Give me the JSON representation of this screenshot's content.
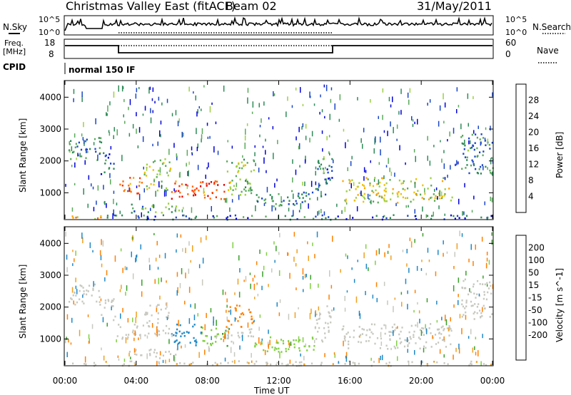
{
  "header": {
    "title": "Christmas Valley East (fitACF)",
    "beam": "Beam 02",
    "date": "31/May/2011"
  },
  "top_panels": {
    "nsky_label": "N.Sky",
    "nsearch_label": "N.Search",
    "nsky_ticks": [
      "10^5",
      "10^0"
    ],
    "nsearch_ticks": [
      "10^5",
      "10^0"
    ],
    "freq_label": "Freq.",
    "freq_unit": "[MHz]",
    "freq_ticks": [
      "18",
      "8"
    ],
    "nave_label": "Nave",
    "nave_ticks": [
      "60",
      "0"
    ],
    "cpid_label": "CPID",
    "cpid_value": "normal 150 IF"
  },
  "axes": {
    "xlabel": "Time UT",
    "x_ticks": [
      "00:00",
      "04:00",
      "08:00",
      "12:00",
      "16:00",
      "20:00",
      "00:00"
    ],
    "ylabel": "Slant Range [km]",
    "y_ticks": [
      "1000",
      "2000",
      "3000",
      "4000"
    ]
  },
  "colors": {
    "power_scale": [
      "#0000dd",
      "#1a46c8",
      "#2e8b57",
      "#5aaa5a",
      "#9cd040",
      "#f0c000",
      "#ffa500",
      "#ff6a00",
      "#ff3000",
      "#e00000"
    ],
    "velocity_scale": [
      "#1038b0",
      "#1e88c8",
      "#3aa02a",
      "#80d040",
      "#c8c8c0",
      "#c8c8c0",
      "#f0a020",
      "#ff8000",
      "#f04000",
      "#e00000"
    ]
  },
  "chart_data": [
    {
      "type": "heatmap",
      "title": "",
      "xlabel": "",
      "ylabel": "Slant Range [km]",
      "xlim": [
        0,
        24
      ],
      "ylim": [
        180,
        4500
      ],
      "colorbar_label": "Power [dB]",
      "colorbar_ticks": [
        "4",
        "8",
        "12",
        "16",
        "20",
        "24",
        "28"
      ],
      "regions": [
        {
          "t0": 0.2,
          "t1": 2.0,
          "r0": 2050,
          "r1": 2750,
          "value": 9
        },
        {
          "t0": 2.0,
          "t1": 2.8,
          "r0": 1600,
          "r1": 2300,
          "value": 6
        },
        {
          "t0": 2.9,
          "t1": 4.4,
          "r0": 1000,
          "r1": 1500,
          "value": 24
        },
        {
          "t0": 4.4,
          "t1": 5.9,
          "r0": 1100,
          "r1": 2100,
          "value": 14
        },
        {
          "t0": 3.5,
          "t1": 6.4,
          "r0": 400,
          "r1": 700,
          "value": 11
        },
        {
          "t0": 5.9,
          "t1": 9.3,
          "r0": 800,
          "r1": 1400,
          "value": 26
        },
        {
          "t0": 9.0,
          "t1": 10.6,
          "r0": 900,
          "r1": 2100,
          "value": 13
        },
        {
          "t0": 10.6,
          "t1": 14.0,
          "r0": 600,
          "r1": 1100,
          "value": 8
        },
        {
          "t0": 14.0,
          "t1": 15.0,
          "r0": 900,
          "r1": 2100,
          "value": 6
        },
        {
          "t0": 15.5,
          "t1": 21.7,
          "r0": 700,
          "r1": 1500,
          "value": 16
        },
        {
          "t0": 22.2,
          "t1": 24.0,
          "r0": 1600,
          "r1": 2900,
          "value": 8
        },
        {
          "t0": 0.0,
          "t1": 2.2,
          "r0": 200,
          "r1": 350,
          "value": 20
        },
        {
          "t0": 2.2,
          "t1": 24.0,
          "r0": 180,
          "r1": 330,
          "value": 6
        }
      ]
    },
    {
      "type": "heatmap",
      "title": "",
      "xlabel": "Time UT",
      "ylabel": "Slant Range [km]",
      "xlim": [
        0,
        24
      ],
      "ylim": [
        180,
        4500
      ],
      "colorbar_label": "Velocity [m s^-1]",
      "colorbar_ticks": [
        "200",
        "100",
        "50",
        "15",
        "-15",
        "-50",
        "-100",
        "-200"
      ],
      "regions": [
        {
          "t0": 0.2,
          "t1": 2.0,
          "r0": 2050,
          "r1": 2750,
          "value": 0
        },
        {
          "t0": 2.0,
          "t1": 2.8,
          "r0": 1600,
          "r1": 2300,
          "value": 0
        },
        {
          "t0": 2.9,
          "t1": 4.4,
          "r0": 1000,
          "r1": 1500,
          "value": 0
        },
        {
          "t0": 4.4,
          "t1": 5.9,
          "r0": 1100,
          "r1": 2100,
          "value": 0
        },
        {
          "t0": 3.5,
          "t1": 6.4,
          "r0": 400,
          "r1": 700,
          "value": 0
        },
        {
          "t0": 5.9,
          "t1": 7.5,
          "r0": 800,
          "r1": 1500,
          "value": 150
        },
        {
          "t0": 7.5,
          "t1": 9.3,
          "r0": 800,
          "r1": 1400,
          "value": 40
        },
        {
          "t0": 9.0,
          "t1": 10.6,
          "r0": 1400,
          "r1": 2100,
          "value": -150
        },
        {
          "t0": 9.0,
          "t1": 10.6,
          "r0": 900,
          "r1": 1400,
          "value": 0
        },
        {
          "t0": 10.6,
          "t1": 14.0,
          "r0": 600,
          "r1": 1100,
          "value": 30
        },
        {
          "t0": 14.0,
          "t1": 15.0,
          "r0": 900,
          "r1": 2100,
          "value": 0
        },
        {
          "t0": 15.5,
          "t1": 21.7,
          "r0": 700,
          "r1": 1500,
          "value": 0
        },
        {
          "t0": 22.2,
          "t1": 24.0,
          "r0": 1600,
          "r1": 2900,
          "value": 0
        },
        {
          "t0": 0.0,
          "t1": 24.0,
          "r0": 180,
          "r1": 330,
          "value": -40
        }
      ]
    }
  ]
}
